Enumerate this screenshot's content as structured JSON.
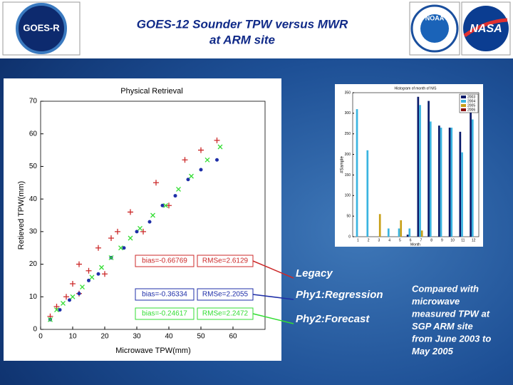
{
  "header": {
    "title": [
      "GOES-12 Sounder TPW versus MWR",
      "at ARM site"
    ],
    "logos": [
      "GOES-R",
      "NOAA",
      "NASA"
    ]
  },
  "chart_data": [
    {
      "type": "scatter",
      "title": "Physical Retrieval",
      "x_label": "Microwave TPW(mm)",
      "y_label": "Retieved TPW(mm)",
      "xlim": [
        0,
        70
      ],
      "ylim": [
        0,
        70
      ],
      "xticks": [
        0,
        10,
        20,
        30,
        40,
        50,
        60
      ],
      "yticks": [
        0,
        10,
        20,
        30,
        40,
        50,
        60,
        70
      ],
      "series": [
        {
          "name": "Legacy",
          "color": "#cc2a2a",
          "marker": "plus",
          "x": [
            3,
            5,
            8,
            10,
            12,
            15,
            18,
            20,
            24,
            28,
            32,
            36,
            40,
            45,
            50,
            55,
            12,
            22
          ],
          "y": [
            4,
            7,
            10,
            14,
            11,
            18,
            25,
            17,
            30,
            36,
            30,
            45,
            38,
            52,
            55,
            58,
            20,
            28
          ],
          "bias": "bias=-0.66769",
          "rmse": "RMSe=2.6129"
        },
        {
          "name": "Phy1:Regression",
          "color": "#1f2fa8",
          "marker": "dot",
          "x": [
            3,
            6,
            9,
            12,
            15,
            18,
            22,
            26,
            30,
            34,
            38,
            42,
            46,
            50,
            55
          ],
          "y": [
            3,
            6,
            9,
            11,
            15,
            17,
            22,
            25,
            30,
            33,
            38,
            41,
            46,
            49,
            52
          ],
          "bias": "bias=-0.36334",
          "rmse": "RMSe=2.2055"
        },
        {
          "name": "Phy2:Forecast",
          "color": "#33dd33",
          "marker": "cross",
          "x": [
            3,
            5,
            7,
            10,
            13,
            16,
            19,
            22,
            25,
            28,
            31,
            35,
            39,
            43,
            47,
            52,
            56
          ],
          "y": [
            3,
            6,
            8,
            10,
            13,
            16,
            19,
            22,
            25,
            28,
            31,
            35,
            38,
            43,
            47,
            52,
            56
          ],
          "bias": "bias=-0.24617",
          "rmse": "RMSe=2.2472"
        }
      ]
    },
    {
      "type": "bar",
      "title": "Histogram of month of N/S",
      "x_label": "Month",
      "y_label": "#Sample",
      "categories": [
        1,
        2,
        3,
        4,
        5,
        6,
        7,
        8,
        9,
        10,
        11,
        12
      ],
      "ylim": [
        0,
        350
      ],
      "yticks": [
        0,
        50,
        100,
        150,
        200,
        250,
        300,
        350
      ],
      "series": [
        {
          "name": "2003",
          "color": "#0a1a6a",
          "values": [
            0,
            0,
            0,
            0,
            0,
            5,
            340,
            330,
            270,
            265,
            255,
            315
          ]
        },
        {
          "name": "2004",
          "color": "#3ab4e0",
          "values": [
            310,
            210,
            0,
            20,
            20,
            20,
            320,
            280,
            265,
            265,
            205,
            285
          ]
        },
        {
          "name": "2005",
          "color": "#c8a018",
          "values": [
            0,
            0,
            55,
            0,
            40,
            0,
            15,
            0,
            0,
            0,
            0,
            0
          ]
        },
        {
          "name": "2006",
          "color": "#8a1010",
          "values": [
            0,
            0,
            0,
            0,
            0,
            0,
            0,
            0,
            0,
            0,
            0,
            0
          ]
        }
      ]
    }
  ],
  "note": [
    "Compared with",
    "microwave",
    "measured TPW at",
    "SGP ARM site",
    "from June 2003 to",
    "May 2005"
  ]
}
